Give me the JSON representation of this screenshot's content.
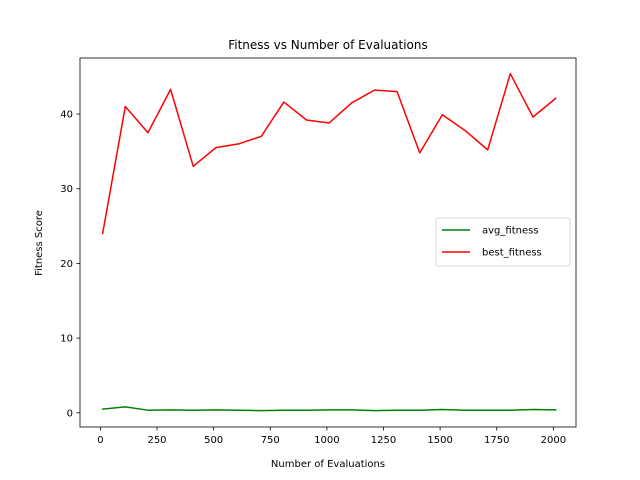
{
  "chart_data": {
    "type": "line",
    "title": "Fitness vs Number of Evaluations",
    "xlabel": "Number of Evaluations",
    "ylabel": "Fitness Score",
    "xlim": [
      -90,
      2100
    ],
    "ylim": [
      -1.9,
      47.5
    ],
    "xticks": [
      0,
      250,
      500,
      750,
      1000,
      1250,
      1500,
      1750,
      2000
    ],
    "yticks": [
      0,
      10,
      20,
      30,
      40
    ],
    "grid": false,
    "legend_position": "center-right",
    "x": [
      10,
      110,
      210,
      310,
      410,
      510,
      610,
      710,
      810,
      910,
      1010,
      1110,
      1210,
      1310,
      1410,
      1510,
      1610,
      1710,
      1810,
      1910,
      2010
    ],
    "series": [
      {
        "name": "avg_fitness",
        "color": "#008000",
        "values": [
          0.5,
          0.8,
          0.35,
          0.4,
          0.35,
          0.4,
          0.35,
          0.3,
          0.35,
          0.35,
          0.4,
          0.4,
          0.3,
          0.35,
          0.35,
          0.45,
          0.35,
          0.35,
          0.35,
          0.45,
          0.4
        ]
      },
      {
        "name": "best_fitness",
        "color": "#ff0000",
        "values": [
          24.0,
          41.0,
          37.5,
          43.3,
          33.0,
          35.5,
          36.0,
          37.0,
          41.6,
          39.2,
          38.8,
          41.5,
          43.2,
          43.0,
          34.8,
          39.9,
          37.8,
          35.2,
          45.4,
          39.6,
          42.1
        ]
      }
    ]
  }
}
